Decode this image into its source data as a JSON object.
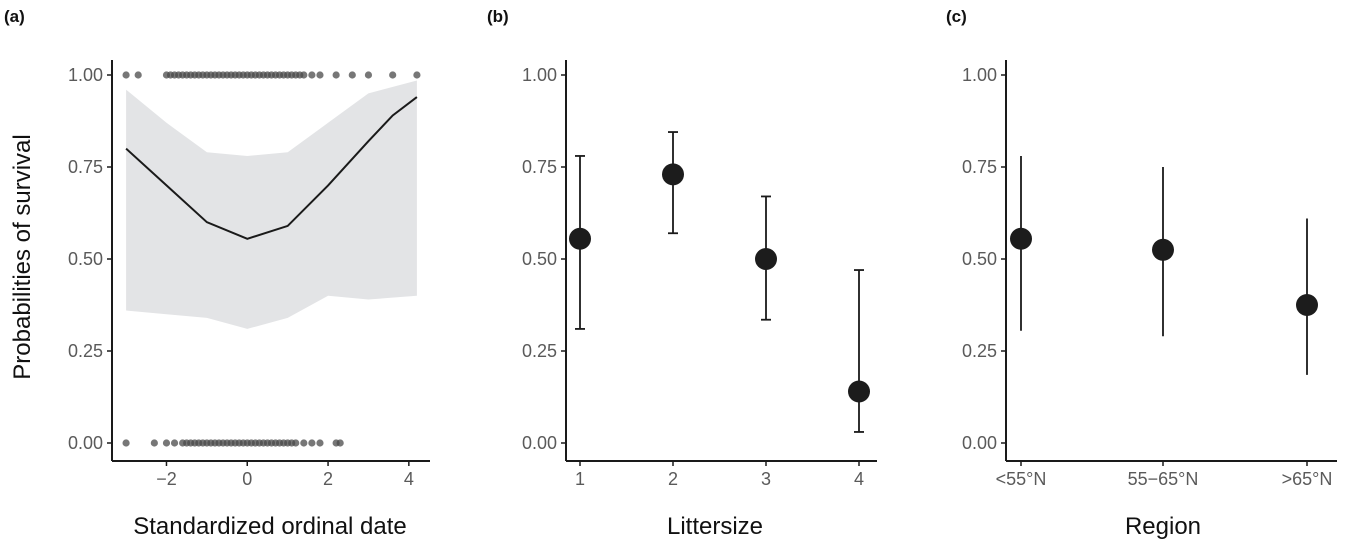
{
  "chart_data": [
    {
      "panel": "(a)",
      "type": "line",
      "xlabel": "Standardized ordinal date",
      "ylabel": "Probabilities of survival",
      "xlim": [
        -3.2,
        4.4
      ],
      "ylim": [
        0,
        1
      ],
      "x_ticks": [
        "−2",
        "0",
        "2",
        "4"
      ],
      "x_tick_values": [
        -2,
        0,
        2,
        4
      ],
      "y_ticks": [
        "0.00",
        "0.25",
        "0.50",
        "0.75",
        "1.00"
      ],
      "y_tick_values": [
        0,
        0.25,
        0.5,
        0.75,
        1
      ],
      "fit_line": {
        "x": [
          -3.0,
          -2.0,
          -1.0,
          0.0,
          1.0,
          2.0,
          3.0,
          3.6,
          4.2
        ],
        "y": [
          0.8,
          0.7,
          0.6,
          0.555,
          0.59,
          0.7,
          0.82,
          0.89,
          0.94
        ]
      },
      "ribbon": {
        "x": [
          -3.0,
          -2.0,
          -1.0,
          0.0,
          1.0,
          2.0,
          3.0,
          4.2
        ],
        "lower": [
          0.36,
          0.35,
          0.34,
          0.31,
          0.34,
          0.4,
          0.39,
          0.4
        ],
        "upper": [
          0.96,
          0.87,
          0.79,
          0.78,
          0.79,
          0.87,
          0.95,
          0.985
        ]
      },
      "points_survived": {
        "y": 1,
        "x": [
          -3.0,
          -2.7,
          -1.6,
          -1.4,
          -2.0,
          -1.9,
          -1.8,
          -1.7,
          -1.5,
          -1.3,
          -1.2,
          -1.1,
          -1.0,
          -0.9,
          -0.8,
          -0.7,
          -0.6,
          -0.5,
          -0.4,
          -0.3,
          -0.2,
          -0.1,
          0.0,
          0.1,
          0.2,
          0.3,
          0.4,
          0.5,
          0.6,
          0.7,
          0.8,
          0.9,
          1.0,
          1.1,
          1.2,
          1.3,
          1.4,
          1.6,
          1.8,
          2.2,
          2.6,
          3.0,
          3.6,
          4.2
        ]
      },
      "points_died": {
        "y": 0,
        "x": [
          -3.0,
          -2.3,
          -2.0,
          -1.8,
          -1.6,
          -1.5,
          -1.4,
          -1.3,
          -1.2,
          -1.1,
          -1.0,
          -0.9,
          -0.8,
          -0.7,
          -0.6,
          -0.5,
          -0.4,
          -0.3,
          -0.2,
          -0.1,
          0.0,
          0.1,
          0.2,
          0.3,
          0.4,
          0.5,
          0.6,
          0.7,
          0.8,
          0.9,
          1.0,
          1.1,
          1.2,
          1.4,
          1.6,
          1.8,
          2.2,
          2.3
        ]
      }
    },
    {
      "panel": "(b)",
      "type": "scatter",
      "xlabel": "Littersize",
      "categories": [
        "1",
        "2",
        "3",
        "4"
      ],
      "values": [
        0.555,
        0.73,
        0.5,
        0.14
      ],
      "lower": [
        0.31,
        0.57,
        0.335,
        0.03
      ],
      "upper": [
        0.78,
        0.845,
        0.67,
        0.47
      ],
      "error_style": "capped",
      "ylim": [
        0,
        1
      ],
      "y_ticks": [
        "0.00",
        "0.25",
        "0.50",
        "0.75",
        "1.00"
      ],
      "y_tick_values": [
        0,
        0.25,
        0.5,
        0.75,
        1
      ]
    },
    {
      "panel": "(c)",
      "type": "scatter",
      "xlabel": "Region",
      "categories": [
        "<55°N",
        "55−65°N",
        ">65°N"
      ],
      "values": [
        0.555,
        0.525,
        0.375
      ],
      "lower": [
        0.305,
        0.29,
        0.185
      ],
      "upper": [
        0.78,
        0.75,
        0.61
      ],
      "error_style": "plain",
      "ylim": [
        0,
        1
      ],
      "y_ticks": [
        "0.00",
        "0.25",
        "0.50",
        "0.75",
        "1.00"
      ],
      "y_tick_values": [
        0,
        0.25,
        0.5,
        0.75,
        1
      ]
    }
  ],
  "colors": {
    "point": "#1c1c1c",
    "line": "#1a1a1a",
    "ribbon": "#e3e4e6",
    "jitter_point": "#4a4a4a",
    "tick_text": "#5a5a5a"
  }
}
